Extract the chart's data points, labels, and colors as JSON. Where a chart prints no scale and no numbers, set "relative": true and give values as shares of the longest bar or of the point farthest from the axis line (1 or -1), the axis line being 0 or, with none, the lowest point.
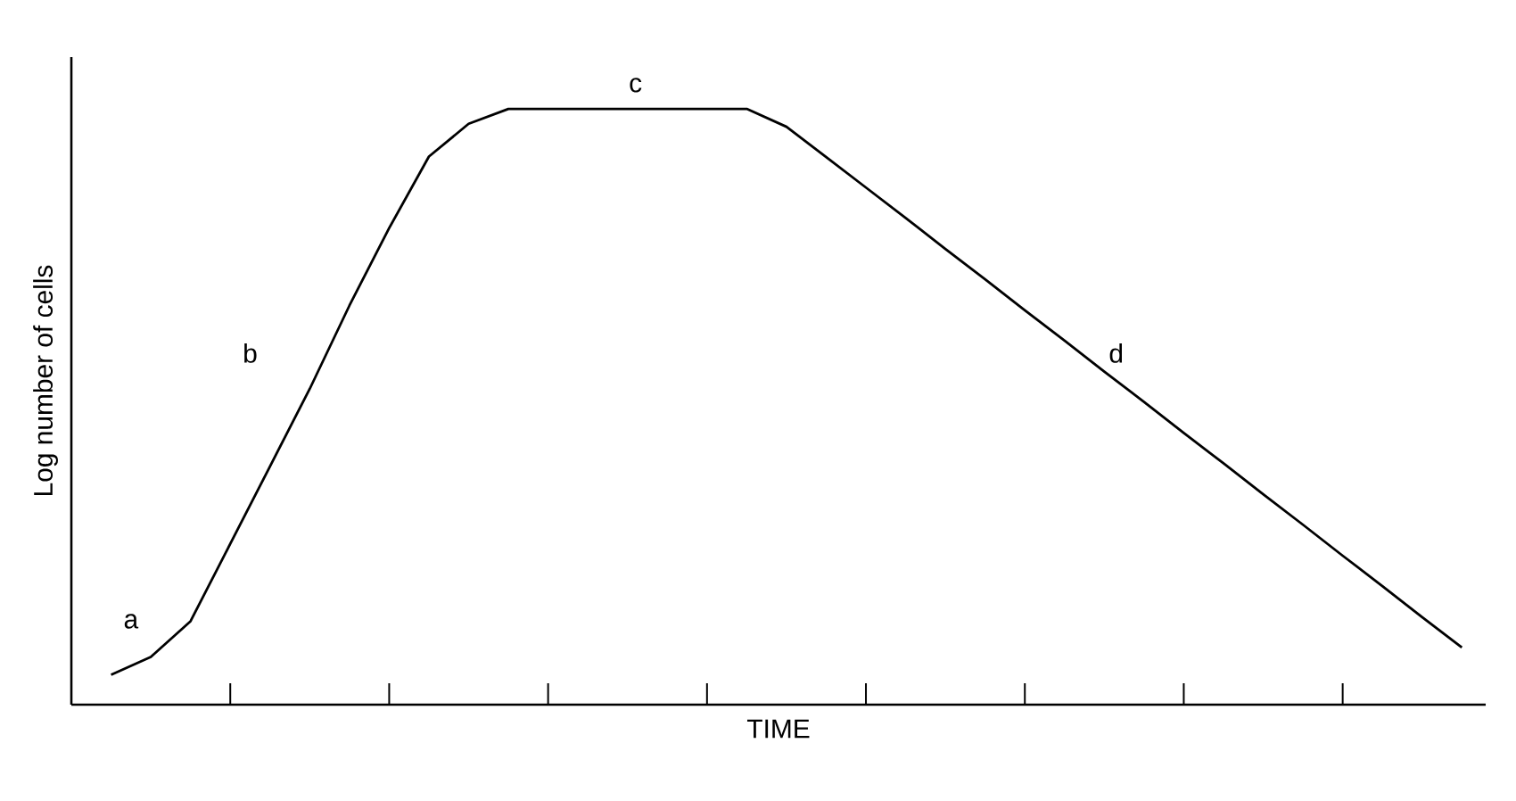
{
  "chart_data": {
    "type": "line",
    "relative": true,
    "xlabel": "TIME",
    "ylabel": "Log number of cells",
    "color": "#000000",
    "categories": [
      null,
      null,
      null,
      null,
      null,
      null,
      null,
      null,
      null,
      null,
      null,
      null,
      null,
      null,
      null,
      null,
      null,
      null,
      null,
      null,
      null,
      null,
      null,
      null,
      null,
      null,
      null,
      null,
      null,
      null,
      null,
      null,
      null,
      null,
      null
    ],
    "values": [
      0.05,
      0.08,
      0.14,
      0.27,
      0.4,
      0.53,
      0.67,
      0.8,
      0.92,
      0.975,
      1.0,
      1.0,
      1.0,
      1.0,
      1.0,
      1.0,
      1.0,
      0.97,
      0.919,
      0.868,
      0.817,
      0.765,
      0.714,
      0.662,
      0.611,
      0.559,
      0.508,
      0.456,
      0.405,
      0.353,
      0.302,
      0.25,
      0.199,
      0.147,
      0.096
    ],
    "marker": "none",
    "line_style": "solid",
    "annotations": [
      "a",
      "b",
      "c",
      "d"
    ]
  }
}
